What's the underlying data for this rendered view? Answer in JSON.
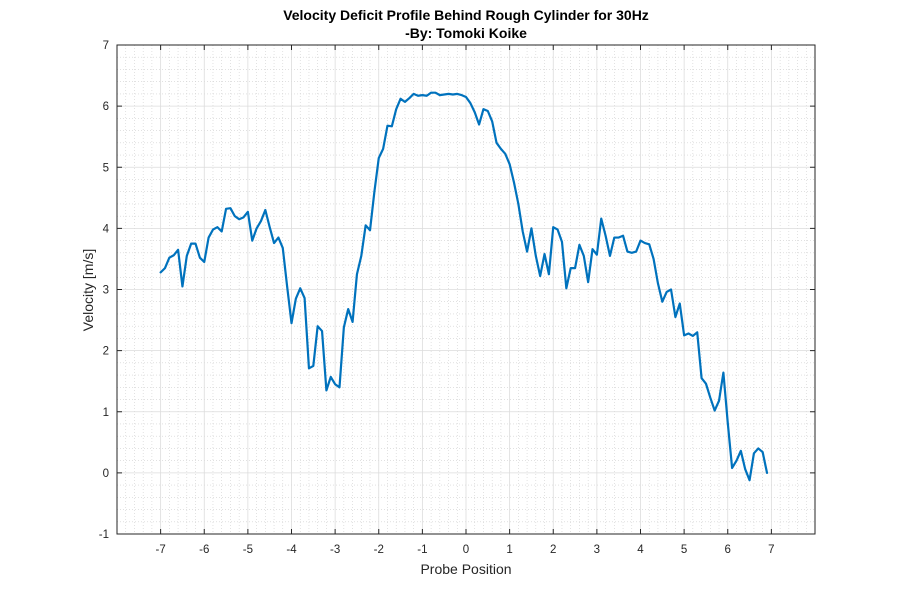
{
  "chart_data": {
    "type": "line",
    "title": "Velocity Deficit Profile Behind Rough Cylinder for 30Hz",
    "subtitle": "-By: Tomoki Koike",
    "xlabel": "Probe Position",
    "ylabel": "Velocity [m/s]",
    "xlim": [
      -8,
      8
    ],
    "ylim": [
      -1,
      7
    ],
    "xticks": [
      -7,
      -6,
      -5,
      -4,
      -3,
      -2,
      -1,
      0,
      1,
      2,
      3,
      4,
      5,
      6,
      7
    ],
    "yticks": [
      -1,
      0,
      1,
      2,
      3,
      4,
      5,
      6,
      7
    ],
    "grid": true,
    "minor_grid": true,
    "line_color": "#0072BD",
    "series": [
      {
        "x": [
          -7.0,
          -6.9,
          -6.8,
          -6.7,
          -6.6,
          -6.5,
          -6.4,
          -6.3,
          -6.2,
          -6.1,
          -6.0,
          -5.9,
          -5.8,
          -5.7,
          -5.6,
          -5.5,
          -5.4,
          -5.3,
          -5.2,
          -5.1,
          -5.0,
          -4.9,
          -4.8,
          -4.7,
          -4.6,
          -4.5,
          -4.4,
          -4.3,
          -4.2,
          -4.1,
          -4.0,
          -3.9,
          -3.8,
          -3.7,
          -3.6,
          -3.5,
          -3.4,
          -3.3,
          -3.2,
          -3.1,
          -3.0,
          -2.9,
          -2.8,
          -2.7,
          -2.6,
          -2.5,
          -2.4,
          -2.3,
          -2.2,
          -2.1,
          -2.0,
          -1.9,
          -1.8,
          -1.7,
          -1.6,
          -1.5,
          -1.4,
          -1.3,
          -1.2,
          -1.1,
          -1.0,
          -0.9,
          -0.8,
          -0.7,
          -0.6,
          -0.5,
          -0.4,
          -0.3,
          -0.2,
          -0.1,
          0.0,
          0.1,
          0.2,
          0.3,
          0.4,
          0.5,
          0.6,
          0.7,
          0.8,
          0.9,
          1.0,
          1.1,
          1.2,
          1.3,
          1.4,
          1.5,
          1.6,
          1.7,
          1.8,
          1.9,
          2.0,
          2.1,
          2.2,
          2.3,
          2.4,
          2.5,
          2.6,
          2.7,
          2.8,
          2.9,
          3.0,
          3.1,
          3.2,
          3.3,
          3.4,
          3.5,
          3.6,
          3.7,
          3.8,
          3.9,
          4.0,
          4.1,
          4.2,
          4.3,
          4.4,
          4.5,
          4.6,
          4.7,
          4.8,
          4.9,
          5.0,
          5.1,
          5.2,
          5.3,
          5.4,
          5.5,
          5.6,
          5.7,
          5.8,
          5.9,
          6.0,
          6.1,
          6.2,
          6.3,
          6.4,
          6.5,
          6.6,
          6.7,
          6.8,
          6.9
        ],
        "y": [
          3.28,
          3.35,
          3.52,
          3.56,
          3.65,
          3.05,
          3.55,
          3.75,
          3.75,
          3.52,
          3.45,
          3.85,
          3.98,
          4.02,
          3.95,
          4.32,
          4.33,
          4.2,
          4.15,
          4.18,
          4.27,
          3.8,
          4.0,
          4.12,
          4.3,
          4.02,
          3.76,
          3.85,
          3.68,
          3.05,
          2.45,
          2.85,
          3.02,
          2.86,
          1.71,
          1.75,
          2.4,
          2.32,
          1.35,
          1.57,
          1.45,
          1.4,
          2.38,
          2.68,
          2.47,
          3.25,
          3.55,
          4.05,
          3.97,
          4.6,
          5.15,
          5.3,
          5.68,
          5.67,
          5.95,
          6.12,
          6.07,
          6.13,
          6.2,
          6.17,
          6.18,
          6.17,
          6.22,
          6.22,
          6.18,
          6.19,
          6.2,
          6.19,
          6.2,
          6.18,
          6.15,
          6.05,
          5.9,
          5.7,
          5.95,
          5.92,
          5.75,
          5.4,
          5.3,
          5.22,
          5.05,
          4.75,
          4.4,
          3.95,
          3.62,
          4.0,
          3.55,
          3.22,
          3.58,
          3.25,
          4.02,
          3.98,
          3.78,
          3.02,
          3.35,
          3.35,
          3.73,
          3.55,
          3.12,
          3.66,
          3.57,
          4.16,
          3.88,
          3.55,
          3.85,
          3.85,
          3.88,
          3.62,
          3.6,
          3.62,
          3.8,
          3.76,
          3.74,
          3.5,
          3.1,
          2.8,
          2.96,
          3.0,
          2.55,
          2.77,
          2.25,
          2.28,
          2.24,
          2.3,
          1.55,
          1.46,
          1.23,
          1.02,
          1.18,
          1.64,
          0.82,
          0.08,
          0.2,
          0.36,
          0.06,
          -0.12,
          0.32,
          0.4,
          0.34,
          0.0
        ]
      }
    ]
  }
}
